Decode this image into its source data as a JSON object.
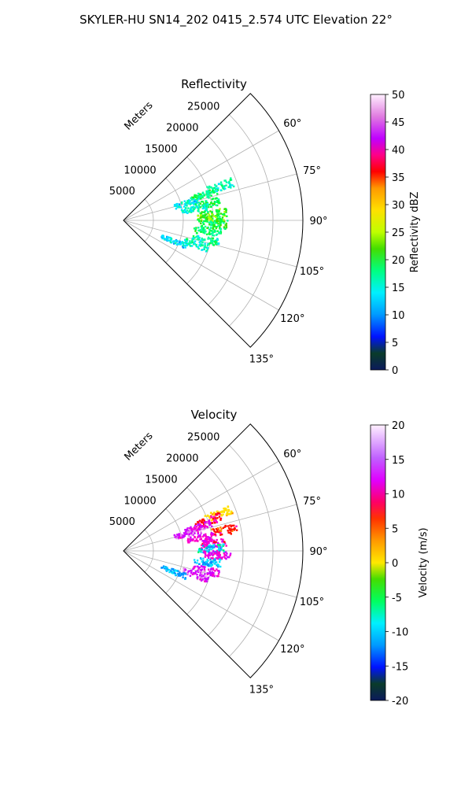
{
  "figure_title": "SKYLER-HU  SN14_202  0415_2.574 UTC Elevation 22°",
  "chart_data": [
    {
      "type": "scatter",
      "projection": "polar-sector",
      "title": "Reflectivity",
      "radial_label": "Meters",
      "radial_ticks": [
        "5000",
        "10000",
        "15000",
        "20000",
        "25000"
      ],
      "radial_tick_values": [
        5000,
        10000,
        15000,
        20000,
        25000
      ],
      "rlim": [
        0,
        30000
      ],
      "angle_ticks": [
        "60°",
        "75°",
        "90°",
        "105°",
        "120°",
        "135°"
      ],
      "angle_tick_values": [
        60,
        75,
        90,
        105,
        120,
        135
      ],
      "theta_range": [
        45,
        135
      ],
      "grid": true,
      "colorbar": {
        "label": "Reflectivity dBZ",
        "ticks": [
          "0",
          "5",
          "10",
          "15",
          "20",
          "25",
          "30",
          "35",
          "40",
          "45",
          "50"
        ],
        "range": [
          0,
          50
        ]
      },
      "field": "reflectivity",
      "points": [
        {
          "theta": 70,
          "r": 17000,
          "value": 14
        },
        {
          "theta": 72,
          "r": 14000,
          "value": 16
        },
        {
          "theta": 74,
          "r": 11000,
          "value": 12
        },
        {
          "theta": 78,
          "r": 14000,
          "value": 17
        },
        {
          "theta": 80,
          "r": 12000,
          "value": 13
        },
        {
          "theta": 85,
          "r": 15000,
          "value": 18
        },
        {
          "theta": 88,
          "r": 14500,
          "value": 19
        },
        {
          "theta": 92,
          "r": 15000,
          "value": 17
        },
        {
          "theta": 97,
          "r": 14000,
          "value": 16
        },
        {
          "theta": 103,
          "r": 14000,
          "value": 15
        },
        {
          "theta": 108,
          "r": 12500,
          "value": 14
        },
        {
          "theta": 112,
          "r": 9000,
          "value": 11
        }
      ]
    },
    {
      "type": "scatter",
      "projection": "polar-sector",
      "title": "Velocity",
      "radial_label": "Meters",
      "radial_ticks": [
        "5000",
        "10000",
        "15000",
        "20000",
        "25000"
      ],
      "radial_tick_values": [
        5000,
        10000,
        15000,
        20000,
        25000
      ],
      "rlim": [
        0,
        30000
      ],
      "angle_ticks": [
        "60°",
        "75°",
        "90°",
        "105°",
        "120°",
        "135°"
      ],
      "angle_tick_values": [
        60,
        75,
        90,
        105,
        120,
        135
      ],
      "theta_range": [
        45,
        135
      ],
      "grid": true,
      "colorbar": {
        "label": "Velocity (m/s)",
        "ticks": [
          "-20",
          "-15",
          "-10",
          "-5",
          "0",
          "5",
          "10",
          "15",
          "20"
        ],
        "range": [
          -20,
          20
        ]
      },
      "field": "velocity",
      "points": [
        {
          "theta": 68,
          "r": 17000,
          "value": 2
        },
        {
          "theta": 70,
          "r": 15000,
          "value": 12
        },
        {
          "theta": 72,
          "r": 13000,
          "value": 16
        },
        {
          "theta": 74,
          "r": 11000,
          "value": 17
        },
        {
          "theta": 78,
          "r": 17000,
          "value": 10
        },
        {
          "theta": 80,
          "r": 13000,
          "value": 15
        },
        {
          "theta": 85,
          "r": 15000,
          "value": 14
        },
        {
          "theta": 88,
          "r": 14500,
          "value": -11
        },
        {
          "theta": 92,
          "r": 15500,
          "value": 15
        },
        {
          "theta": 97,
          "r": 14000,
          "value": -12
        },
        {
          "theta": 103,
          "r": 14000,
          "value": 16
        },
        {
          "theta": 108,
          "r": 12500,
          "value": 17
        },
        {
          "theta": 112,
          "r": 9000,
          "value": -13
        }
      ]
    }
  ]
}
